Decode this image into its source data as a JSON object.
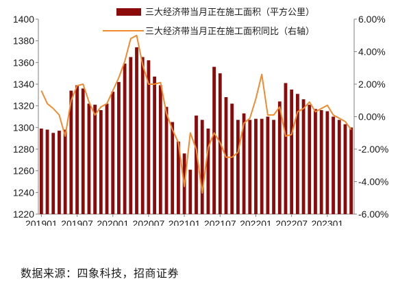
{
  "source_note": "数据来源：四象科技，招商证券",
  "chart_data": {
    "type": "bar+line",
    "colors": {
      "bar": "#8B0A0A",
      "line": "#F08A2E",
      "axis": "#7f7f7f"
    },
    "legend": {
      "placement": "top-center",
      "bar_label": "三大经济带当月正在施工面积（平方公里）",
      "line_label": "三大经济带当月正在施工面积同比（右轴）"
    },
    "x_tick_labels": [
      "201901",
      "201907",
      "202001",
      "202007",
      "202101",
      "202107",
      "202201",
      "202207",
      "202301"
    ],
    "left_axis": {
      "min": 1220,
      "max": 1400,
      "step": 20,
      "ticks": [
        "1220",
        "1240",
        "1260",
        "1280",
        "1300",
        "1320",
        "1340",
        "1360",
        "1380",
        "1400"
      ]
    },
    "right_axis": {
      "min": -6,
      "max": 6,
      "step": 2,
      "ticks": [
        "-6.00%",
        "-4.00%",
        "-2.00%",
        "0.00%",
        "2.00%",
        "4.00%",
        "6.00%"
      ]
    },
    "months": [
      "2019-01",
      "2019-02",
      "2019-03",
      "2019-04",
      "2019-05",
      "2019-06",
      "2019-07",
      "2019-08",
      "2019-09",
      "2019-10",
      "2019-11",
      "2019-12",
      "2020-01",
      "2020-02",
      "2020-03",
      "2020-04",
      "2020-05",
      "2020-06",
      "2020-07",
      "2020-08",
      "2020-09",
      "2020-10",
      "2020-11",
      "2020-12",
      "2021-01",
      "2021-02",
      "2021-03",
      "2021-04",
      "2021-05",
      "2021-06",
      "2021-07",
      "2021-08",
      "2021-09",
      "2021-10",
      "2021-11",
      "2021-12",
      "2022-01",
      "2022-02",
      "2022-03",
      "2022-04",
      "2022-05",
      "2022-06",
      "2022-07",
      "2022-08",
      "2022-09",
      "2022-10",
      "2022-11",
      "2022-12",
      "2023-01",
      "2023-02",
      "2023-03",
      "2023-04",
      "2023-05"
    ],
    "series": [
      {
        "name": "三大经济带当月正在施工面积（平方公里）",
        "kind": "bar",
        "axis": "left",
        "values": [
          1299,
          1298,
          1295,
          1297,
          1298,
          1334,
          1339,
          1336,
          1322,
          1321,
          1316,
          1322,
          1333,
          1342,
          1359,
          1365,
          1374,
          1365,
          1362,
          1347,
          1339,
          1319,
          1305,
          1287,
          1276,
          1261,
          1311,
          1307,
          1299,
          1356,
          1350,
          1328,
          1322,
          1307,
          1313,
          1307,
          1308,
          1308,
          1310,
          1307,
          1324,
          1341,
          1335,
          1331,
          1326,
          1321,
          1317,
          1316,
          1315,
          1310,
          1307,
          1303,
          1300
        ]
      },
      {
        "name": "三大经济带当月正在施工面积同比（右轴）",
        "kind": "line",
        "axis": "right",
        "values": [
          1.6,
          0.8,
          0.5,
          0.1,
          -1.2,
          1.0,
          1.9,
          2.0,
          0.9,
          0.1,
          0.6,
          0.8,
          1.6,
          2.4,
          3.4,
          4.8,
          5.0,
          3.2,
          2.0,
          2.0,
          2.1,
          0.2,
          -0.8,
          -1.6,
          -4.3,
          -1.0,
          -2.0,
          -4.7,
          -1.9,
          -1.0,
          -1.6,
          -2.5,
          -2.5,
          -2.2,
          -0.4,
          -0.1,
          1.1,
          2.6,
          0.1,
          0.1,
          0.6,
          -1.2,
          -1.1,
          0.3,
          0.5,
          0.9,
          0.3,
          0.5,
          0.7,
          0.1,
          -0.1,
          -0.3,
          -0.8
        ]
      }
    ]
  }
}
